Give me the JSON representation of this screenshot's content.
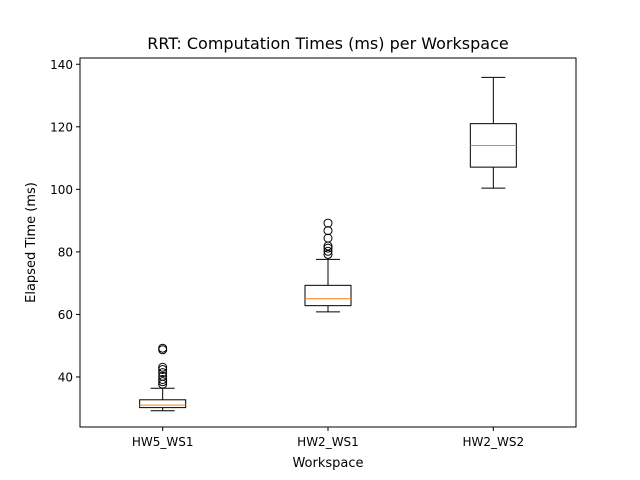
{
  "chart_data": {
    "type": "box",
    "title": "RRT: Computation Times (ms) per Workspace",
    "xlabel": "Workspace",
    "ylabel": "Elapsed Time (ms)",
    "categories": [
      "HW5_WS1",
      "HW2_WS1",
      "HW2_WS2"
    ],
    "ylim": [
      24,
      142
    ],
    "yticks": [
      40,
      60,
      80,
      100,
      120,
      140
    ],
    "grid": false,
    "boxes": [
      {
        "name": "HW5_WS1",
        "whisker_low": 29.2,
        "q1": 30.2,
        "median": 31.0,
        "q3": 32.7,
        "whisker_high": 36.4,
        "outliers": [
          37.7,
          38.5,
          39.2,
          40.2,
          41.4,
          42.4,
          43.1,
          48.7,
          49.2
        ]
      },
      {
        "name": "HW2_WS1",
        "whisker_low": 60.8,
        "q1": 62.8,
        "median": 65.0,
        "q3": 69.3,
        "whisker_high": 77.6,
        "outliers": [
          79.2,
          80.2,
          81.2,
          81.9,
          84.4,
          86.8,
          89.2
        ]
      },
      {
        "name": "HW2_WS2",
        "whisker_low": 100.4,
        "q1": 107.1,
        "median": 114.0,
        "q3": 121.0,
        "whisker_high": 135.8,
        "outliers": []
      }
    ],
    "colors": {
      "box": "#000000",
      "median": "#ff7f0e",
      "whisker": "#000000",
      "flier": "#000000"
    }
  }
}
